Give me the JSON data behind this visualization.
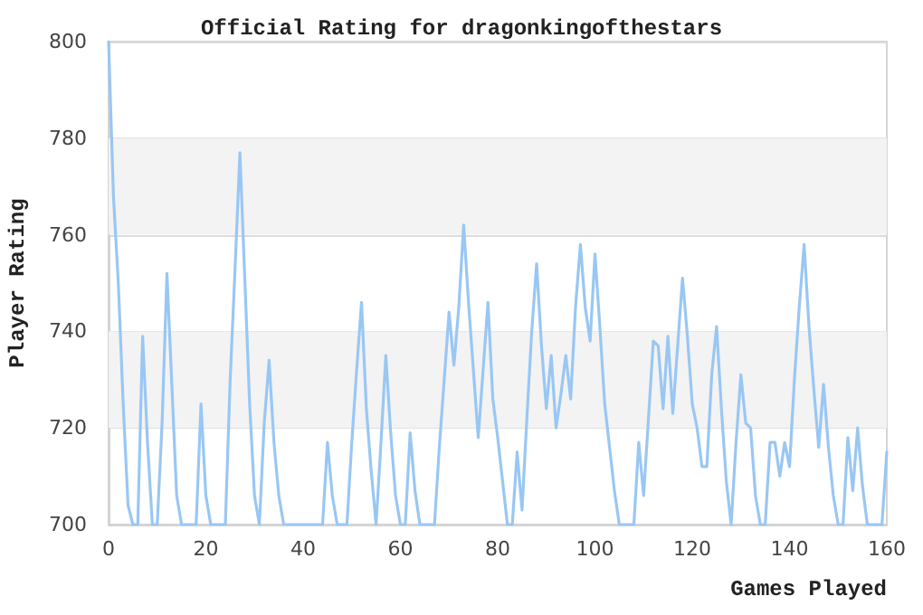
{
  "chart_data": {
    "type": "line",
    "title": "Official Rating for dragonkingofthestars",
    "xlabel": "Games Played",
    "ylabel": "Player Rating",
    "x": [
      0,
      1,
      2,
      3,
      4,
      5,
      6,
      7,
      8,
      9,
      10,
      11,
      12,
      13,
      14,
      15,
      18,
      19,
      20,
      21,
      24,
      25,
      26,
      27,
      28,
      29,
      30,
      31,
      32,
      33,
      34,
      35,
      36,
      44,
      45,
      46,
      47,
      49,
      50,
      51,
      52,
      53,
      54,
      55,
      56,
      57,
      58,
      59,
      60,
      61,
      62,
      63,
      64,
      67,
      68,
      69,
      70,
      71,
      72,
      73,
      74,
      75,
      76,
      77,
      78,
      79,
      80,
      81,
      82,
      83,
      84,
      85,
      86,
      87,
      88,
      89,
      90,
      91,
      92,
      93,
      94,
      95,
      96,
      97,
      98,
      99,
      100,
      101,
      102,
      103,
      104,
      105,
      108,
      109,
      110,
      111,
      112,
      113,
      114,
      115,
      116,
      117,
      118,
      119,
      120,
      121,
      122,
      123,
      124,
      125,
      126,
      127,
      128,
      129,
      130,
      131,
      132,
      133,
      134,
      135,
      136,
      137,
      138,
      139,
      140,
      141,
      142,
      143,
      144,
      145,
      146,
      147,
      148,
      149,
      150,
      151,
      152,
      153,
      154,
      155,
      156,
      159,
      160
    ],
    "values": [
      800,
      768,
      750,
      725,
      704,
      700,
      700,
      739,
      717,
      700,
      700,
      721,
      752,
      729,
      706,
      700,
      700,
      725,
      706,
      700,
      700,
      730,
      753,
      777,
      751,
      725,
      706,
      700,
      721,
      734,
      717,
      706,
      700,
      700,
      717,
      706,
      700,
      700,
      717,
      732,
      746,
      724,
      711,
      700,
      717,
      735,
      719,
      706,
      700,
      700,
      719,
      707,
      700,
      700,
      716,
      730,
      744,
      733,
      745,
      762,
      746,
      732,
      718,
      732,
      746,
      726,
      718,
      709,
      700,
      700,
      715,
      703,
      722,
      740,
      754,
      737,
      724,
      735,
      720,
      727,
      735,
      726,
      745,
      758,
      745,
      738,
      756,
      741,
      725,
      716,
      707,
      700,
      700,
      717,
      706,
      722,
      738,
      737,
      724,
      739,
      723,
      737,
      751,
      739,
      725,
      720,
      712,
      712,
      731,
      741,
      724,
      709,
      700,
      717,
      731,
      721,
      720,
      706,
      700,
      700,
      717,
      717,
      710,
      717,
      712,
      730,
      745,
      758,
      741,
      728,
      716,
      729,
      716,
      706,
      700,
      700,
      718,
      707,
      720,
      708,
      700,
      700,
      715
    ],
    "color": "#99c7f4",
    "xlim": [
      0,
      160
    ],
    "xticks": [
      0,
      20,
      40,
      60,
      80,
      100,
      120,
      140,
      160
    ],
    "ylim": [
      700,
      800
    ],
    "yticks": [
      700,
      720,
      740,
      760,
      780,
      800
    ],
    "grid": "y",
    "marker": "none",
    "line_style": "solid",
    "bands": [
      {
        "axis": "y",
        "from": 720,
        "to": 740,
        "color": "#f3f3f3"
      },
      {
        "axis": "y",
        "from": 760,
        "to": 780,
        "color": "#f3f3f3"
      }
    ]
  }
}
